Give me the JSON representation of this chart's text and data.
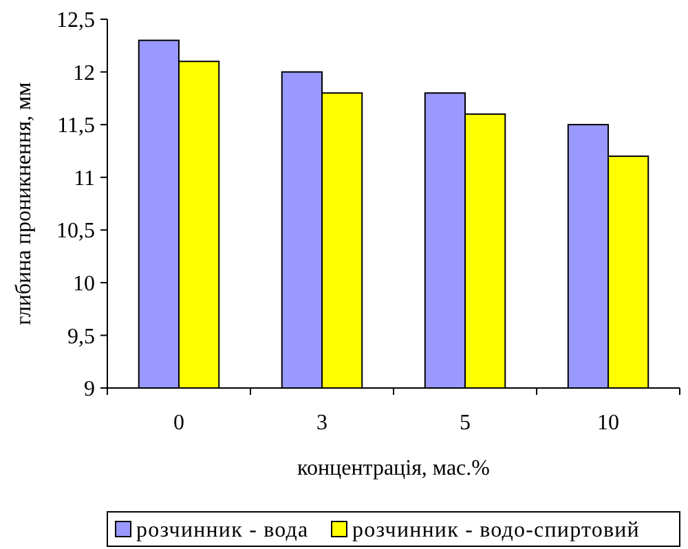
{
  "chart_data": {
    "type": "bar",
    "xlabel": "концентрація, мас.%",
    "ylabel": "глибина проникнення, мм",
    "categories": [
      "0",
      "3",
      "5",
      "10"
    ],
    "series": [
      {
        "name": "розчинник - вода",
        "color": "#9999ff",
        "values": [
          12.3,
          12.0,
          11.8,
          11.5
        ]
      },
      {
        "name": "розчинник - водо-спиртовий",
        "color": "#ffff00",
        "values": [
          12.1,
          11.8,
          11.6,
          11.2
        ]
      }
    ],
    "ylim": [
      9,
      12.5
    ],
    "yticks": [
      9,
      {
        "value": 9.5,
        "label": "9,5"
      },
      10,
      {
        "value": 10.5,
        "label": "10,5"
      },
      11,
      {
        "value": 11.5,
        "label": "11,5"
      },
      12,
      {
        "value": 12.5,
        "label": "12,5"
      }
    ],
    "grid": false,
    "legend": "bottom"
  }
}
